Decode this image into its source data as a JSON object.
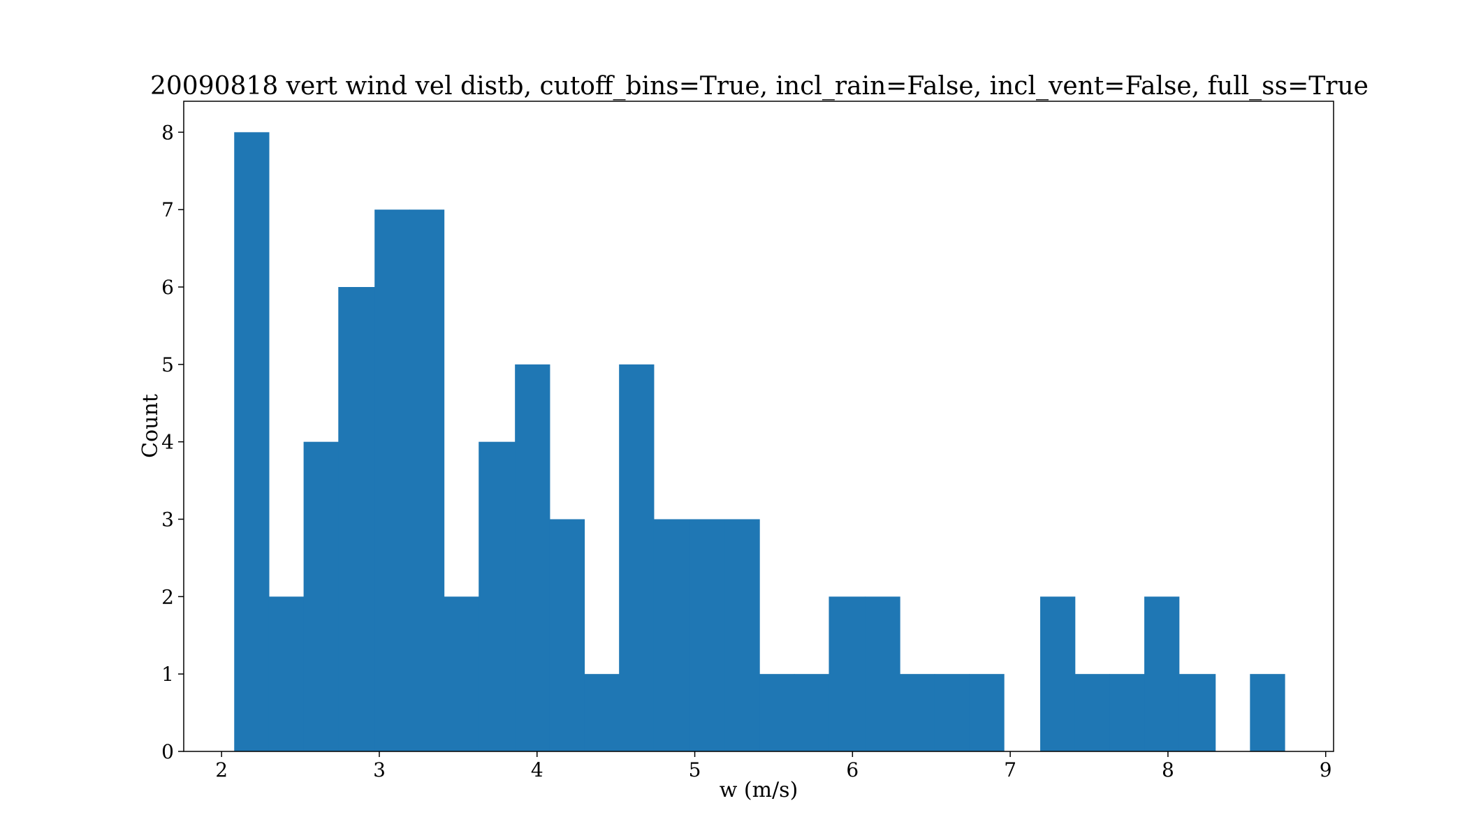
{
  "chart_data": {
    "type": "bar",
    "title": "20090818 vert wind vel distb, cutoff_bins=True, incl_rain=False, incl_vent=False, full_ss=True",
    "xlabel": "w (m/s)",
    "ylabel": "Count",
    "xlim": [
      1.76,
      9.05
    ],
    "ylim": [
      0,
      8.4
    ],
    "xticks": [
      2,
      3,
      4,
      5,
      6,
      7,
      8,
      9
    ],
    "yticks": [
      0,
      1,
      2,
      3,
      4,
      5,
      6,
      7,
      8
    ],
    "bin_edges": [
      2.08,
      2.3,
      2.52,
      2.74,
      2.97,
      3.19,
      3.41,
      3.63,
      3.86,
      4.08,
      4.3,
      4.52,
      4.74,
      4.97,
      5.19,
      5.41,
      5.63,
      5.85,
      6.08,
      6.3,
      6.52,
      6.74,
      6.96,
      7.19,
      7.41,
      7.63,
      7.85,
      8.07,
      8.3,
      8.52,
      8.74
    ],
    "counts": [
      8,
      2,
      4,
      6,
      7,
      7,
      2,
      4,
      5,
      3,
      1,
      5,
      3,
      3,
      3,
      1,
      1,
      2,
      2,
      1,
      1,
      1,
      0,
      2,
      1,
      1,
      2,
      1,
      0,
      1
    ],
    "bar_color": "#1f77b4",
    "grid": false
  }
}
